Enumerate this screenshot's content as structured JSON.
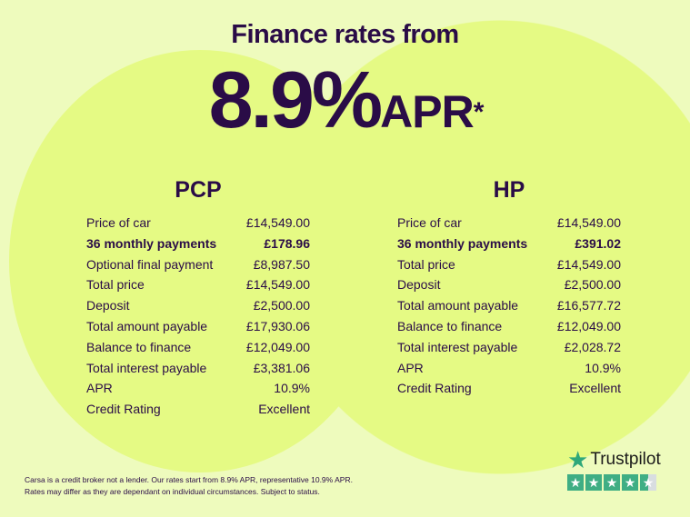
{
  "header": {
    "line1": "Finance rates from",
    "rate": "8.9%",
    "apr": "APR",
    "asterisk": "*"
  },
  "pcp": {
    "title": "PCP",
    "rows": [
      {
        "label": "Price of car",
        "value": "£14,549.00"
      },
      {
        "label": "36 monthly payments",
        "value": "£178.96",
        "bold": true
      },
      {
        "label": "Optional final payment",
        "value": "£8,987.50"
      },
      {
        "label": "Total price",
        "value": "£14,549.00"
      },
      {
        "label": "Deposit",
        "value": "£2,500.00"
      },
      {
        "label": "Total amount payable",
        "value": "£17,930.06"
      },
      {
        "label": "Balance to finance",
        "value": "£12,049.00"
      },
      {
        "label": "Total interest payable",
        "value": "£3,381.06"
      },
      {
        "label": "APR",
        "value": "10.9%"
      },
      {
        "label": "Credit Rating",
        "value": "Excellent"
      }
    ]
  },
  "hp": {
    "title": "HP",
    "rows": [
      {
        "label": "Price of car",
        "value": "£14,549.00"
      },
      {
        "label": "36 monthly payments",
        "value": "£391.02",
        "bold": true
      },
      {
        "label": "Total price",
        "value": "£14,549.00"
      },
      {
        "label": "Deposit",
        "value": "£2,500.00"
      },
      {
        "label": "Total amount payable",
        "value": "£16,577.72"
      },
      {
        "label": "Balance to finance",
        "value": "£12,049.00"
      },
      {
        "label": "Total interest payable",
        "value": "£2,028.72"
      },
      {
        "label": "APR",
        "value": "10.9%"
      },
      {
        "label": "Credit Rating",
        "value": "Excellent"
      }
    ]
  },
  "disclaimer": {
    "line1": "Carsa is a credit broker not a lender. Our rates start from 8.9% APR, representative 10.9% APR.",
    "line2": "Rates may differ as they are dependant on individual circumstances. Subject to status."
  },
  "trustpilot": {
    "name": "Trustpilot",
    "rating_stars": 4.5,
    "brand_color": "#3fae84"
  },
  "colors": {
    "text": "#2a0c47",
    "background": "#eefbbd",
    "circle": "#e5fa84"
  }
}
